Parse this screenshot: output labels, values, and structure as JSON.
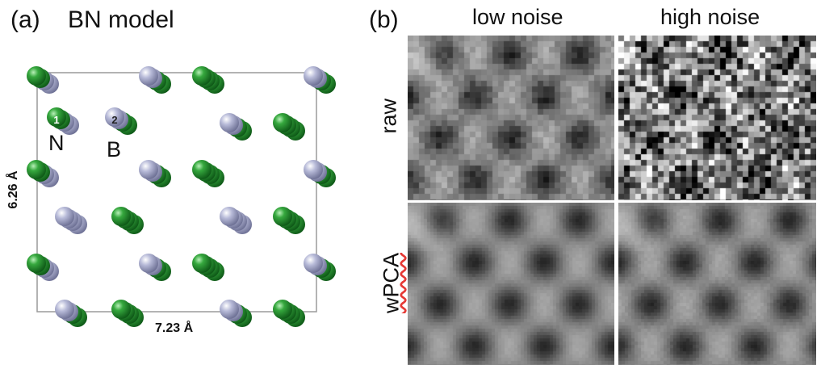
{
  "panel_a": {
    "label": "(a)",
    "title": "BN model",
    "width_label": "7.23 Å",
    "height_label": "6.26 Å",
    "atom_labels": {
      "n_letter": "N",
      "b_letter": "B",
      "n_index": "1",
      "b_index": "2"
    },
    "colors": {
      "nitrogen": "#1f8a2a",
      "boron": "#a9acd0",
      "cell_border": "#9a9a9a"
    }
  },
  "panel_b": {
    "label": "(b)",
    "columns": [
      "low noise",
      "high noise"
    ],
    "rows": [
      "raw",
      "wPCA"
    ],
    "squiggle_color": "#e53935"
  }
}
